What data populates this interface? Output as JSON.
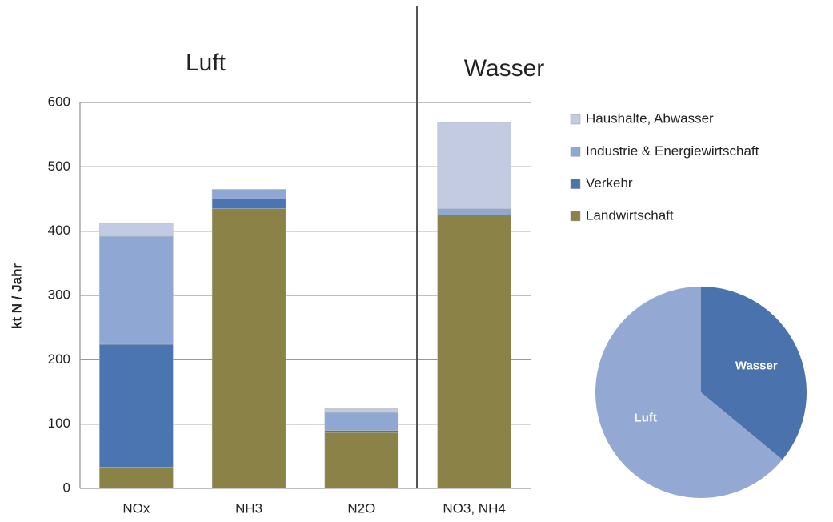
{
  "chart_data": [
    {
      "type": "stacked-bar",
      "y_label": "kt N / Jahr",
      "sections": [
        "Luft",
        "Wasser"
      ],
      "categories": [
        "NOx",
        "NH3",
        "N2O",
        "NO3, NH4"
      ],
      "series": [
        {
          "name": "Landwirtschaft",
          "color": "#8b8248",
          "values": [
            33,
            435,
            87,
            425
          ]
        },
        {
          "name": "Verkehr",
          "color": "#4a75b0",
          "values": [
            191,
            15,
            3,
            0
          ]
        },
        {
          "name": "Industrie & Energiewirtschaft",
          "color": "#8fa8d3",
          "values": [
            168,
            15,
            28,
            10
          ]
        },
        {
          "name": "Haushalte, Abwasser",
          "color": "#c3cbe3",
          "values": [
            20,
            0,
            6,
            134
          ]
        }
      ],
      "ylim": [
        0,
        600
      ],
      "yticks": [
        0,
        100,
        200,
        300,
        400,
        500,
        600
      ],
      "grid": true,
      "legend": "right"
    },
    {
      "type": "pie",
      "categories": [
        "Wasser",
        "Luft"
      ],
      "values": [
        36,
        64
      ],
      "colors": [
        "#4a72ad",
        "#93a9d4"
      ]
    }
  ]
}
